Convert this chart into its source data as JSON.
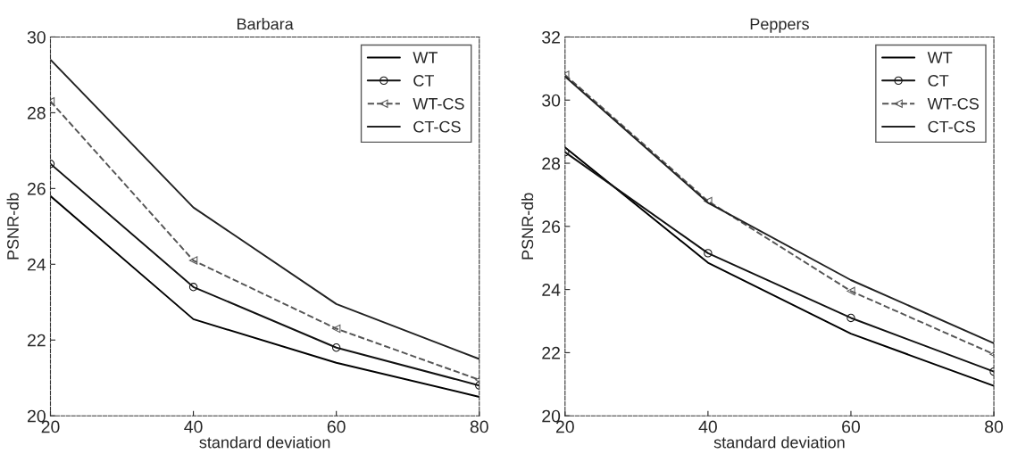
{
  "chart_data": [
    {
      "type": "line",
      "title": "Barbara",
      "xlabel": "standard deviation",
      "ylabel": "PSNR-db",
      "x": [
        20,
        40,
        60,
        80
      ],
      "xlim": [
        20,
        80
      ],
      "xticks": [
        20,
        40,
        60,
        80
      ],
      "ylim": [
        20,
        30
      ],
      "yticks": [
        20,
        22,
        24,
        26,
        28,
        30
      ],
      "grid": false,
      "legend": "top right",
      "series": [
        {
          "name": "WT",
          "color": "#000000",
          "values": [
            25.8,
            22.55,
            21.4,
            20.5
          ],
          "marker": "none",
          "line_style": "solid"
        },
        {
          "name": "CT",
          "color": "#111111",
          "values": [
            26.65,
            23.4,
            21.8,
            20.8
          ],
          "marker": "circle",
          "line_style": "solid"
        },
        {
          "name": "WT-CS",
          "color": "#555555",
          "values": [
            28.3,
            24.1,
            22.3,
            20.95
          ],
          "marker": "triangle",
          "line_style": "dashed"
        },
        {
          "name": "CT-CS",
          "color": "#222222",
          "values": [
            29.4,
            25.5,
            22.95,
            21.5
          ],
          "marker": "none",
          "line_style": "solid"
        }
      ]
    },
    {
      "type": "line",
      "title": "Peppers",
      "xlabel": "standard deviation",
      "ylabel": "PSNR-db",
      "x": [
        20,
        40,
        60,
        80
      ],
      "xlim": [
        20,
        80
      ],
      "xticks": [
        20,
        40,
        60,
        80
      ],
      "ylim": [
        20,
        32
      ],
      "yticks": [
        20,
        22,
        24,
        26,
        28,
        30,
        32
      ],
      "grid": false,
      "legend": "top right",
      "series": [
        {
          "name": "WT",
          "color": "#000000",
          "values": [
            28.5,
            24.85,
            22.6,
            20.95
          ],
          "marker": "none",
          "line_style": "solid"
        },
        {
          "name": "CT",
          "color": "#111111",
          "values": [
            28.35,
            25.15,
            23.1,
            21.4
          ],
          "marker": "circle",
          "line_style": "solid"
        },
        {
          "name": "WT-CS",
          "color": "#555555",
          "values": [
            30.8,
            26.8,
            23.95,
            21.95
          ],
          "marker": "triangle",
          "line_style": "dashed"
        },
        {
          "name": "CT-CS",
          "color": "#222222",
          "values": [
            30.75,
            26.75,
            24.3,
            22.3
          ],
          "marker": "none",
          "line_style": "solid"
        }
      ]
    }
  ]
}
